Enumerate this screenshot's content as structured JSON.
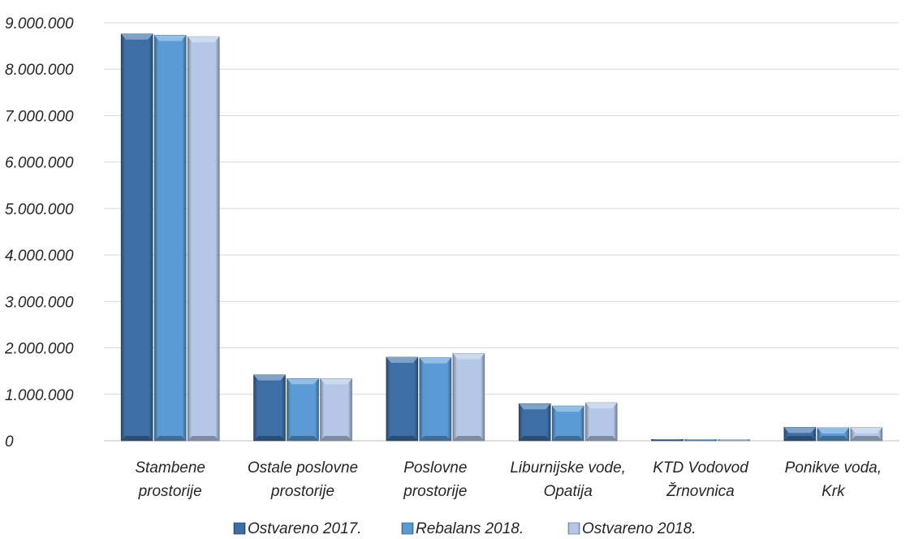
{
  "chart_data": {
    "type": "bar",
    "categories": [
      [
        "Stambene",
        "prostorije"
      ],
      [
        "Ostale poslovne",
        "prostorije"
      ],
      [
        "Poslovne",
        "prostorije"
      ],
      [
        "Liburnijske vode,",
        "Opatija"
      ],
      [
        "KTD Vodovod",
        "Žrnovnica"
      ],
      [
        "Ponikve voda,",
        "Krk"
      ]
    ],
    "series": [
      {
        "name": "Ostvareno 2017.",
        "color": "#3d6ea5",
        "values": [
          8760000,
          1420000,
          1800000,
          800000,
          30000,
          290000
        ]
      },
      {
        "name": "Rebalans 2018.",
        "color": "#5b9bd5",
        "values": [
          8730000,
          1340000,
          1790000,
          750000,
          25000,
          280000
        ]
      },
      {
        "name": "Ostvareno 2018.",
        "color": "#b4c7e7",
        "values": [
          8700000,
          1340000,
          1880000,
          820000,
          20000,
          285000
        ]
      }
    ],
    "y_ticks": [
      "0",
      "1.000.000",
      "2.000.000",
      "3.000.000",
      "4.000.000",
      "5.000.000",
      "6.000.000",
      "7.000.000",
      "8.000.000",
      "9.000.000"
    ],
    "ylim": [
      0,
      9000000
    ],
    "grid": true,
    "legend_position": "bottom"
  }
}
